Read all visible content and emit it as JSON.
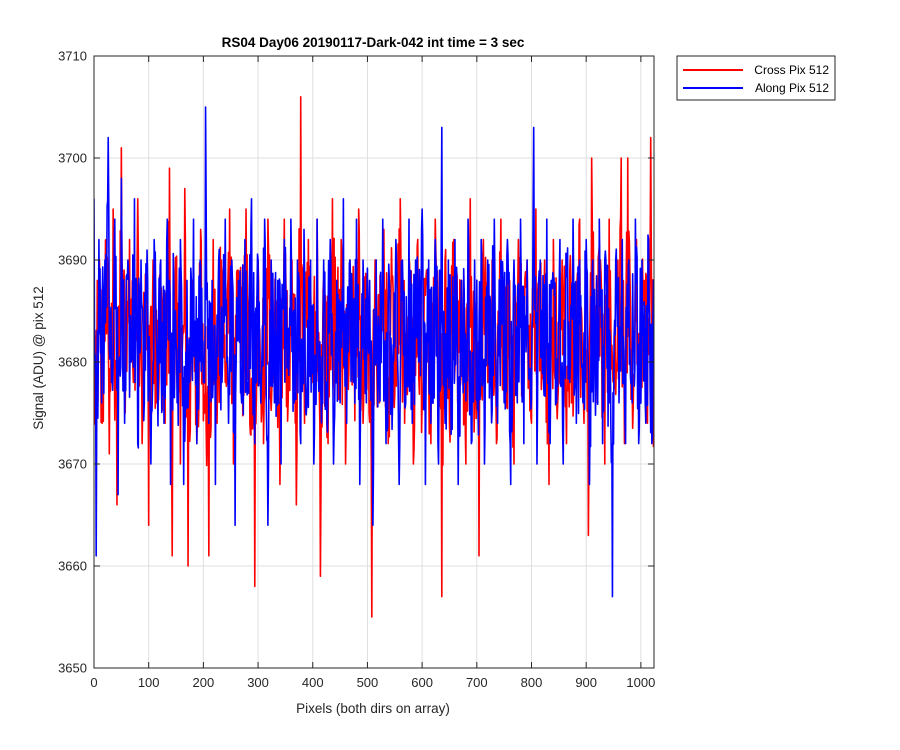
{
  "chart_data": {
    "type": "line",
    "title": "RS04 Day06 20190117-Dark-042 int time = 3 sec",
    "xlabel": "Pixels (both dirs on array)",
    "ylabel": "Signal (ADU) @ pix 512",
    "xlim": [
      0,
      1024
    ],
    "ylim": [
      3650,
      3710
    ],
    "xticks": [
      0,
      100,
      200,
      300,
      400,
      500,
      600,
      700,
      800,
      900,
      1000
    ],
    "yticks": [
      3650,
      3660,
      3670,
      3680,
      3690,
      3700,
      3710
    ],
    "grid": true,
    "legend_position": "outside top-right",
    "noise_model": {
      "description": "1024 samples per series; interior values estimated by linear interpolation between the listed anchor points",
      "n_points": 1024
    },
    "series": [
      {
        "name": "Cross Pix 512",
        "color": "#ff0000",
        "anchors": [
          [
            0,
            3683
          ],
          [
            5,
            3678
          ],
          [
            10,
            3690
          ],
          [
            15,
            3674
          ],
          [
            22,
            3692
          ],
          [
            28,
            3671
          ],
          [
            35,
            3695
          ],
          [
            42,
            3666
          ],
          [
            50,
            3701
          ],
          [
            57,
            3675
          ],
          [
            65,
            3692
          ],
          [
            72,
            3678
          ],
          [
            80,
            3696
          ],
          [
            88,
            3672
          ],
          [
            95,
            3688
          ],
          [
            100,
            3664
          ],
          [
            108,
            3690
          ],
          [
            115,
            3676
          ],
          [
            122,
            3686
          ],
          [
            130,
            3674
          ],
          [
            138,
            3699
          ],
          [
            143,
            3661
          ],
          [
            150,
            3690
          ],
          [
            158,
            3670
          ],
          [
            166,
            3697
          ],
          [
            172,
            3660
          ],
          [
            180,
            3688
          ],
          [
            188,
            3672
          ],
          [
            195,
            3693
          ],
          [
            203,
            3676
          ],
          [
            210,
            3661
          ],
          [
            218,
            3692
          ],
          [
            225,
            3674
          ],
          [
            233,
            3690
          ],
          [
            240,
            3678
          ],
          [
            248,
            3695
          ],
          [
            255,
            3670
          ],
          [
            262,
            3689
          ],
          [
            270,
            3680
          ],
          [
            278,
            3695
          ],
          [
            285,
            3674
          ],
          [
            294,
            3658
          ],
          [
            300,
            3690
          ],
          [
            310,
            3672
          ],
          [
            318,
            3694
          ],
          [
            325,
            3677
          ],
          [
            333,
            3686
          ],
          [
            340,
            3668
          ],
          [
            348,
            3694
          ],
          [
            355,
            3676
          ],
          [
            362,
            3690
          ],
          [
            370,
            3666
          ],
          [
            378,
            3706
          ],
          [
            385,
            3674
          ],
          [
            392,
            3692
          ],
          [
            400,
            3678
          ],
          [
            408,
            3694
          ],
          [
            414,
            3659
          ],
          [
            420,
            3688
          ],
          [
            428,
            3672
          ],
          [
            436,
            3696
          ],
          [
            444,
            3678
          ],
          [
            452,
            3692
          ],
          [
            460,
            3670
          ],
          [
            468,
            3690
          ],
          [
            476,
            3680
          ],
          [
            484,
            3695
          ],
          [
            492,
            3674
          ],
          [
            500,
            3688
          ],
          [
            508,
            3655
          ],
          [
            515,
            3690
          ],
          [
            522,
            3676
          ],
          [
            530,
            3693
          ],
          [
            538,
            3672
          ],
          [
            545,
            3688
          ],
          [
            552,
            3678
          ],
          [
            560,
            3696
          ],
          [
            568,
            3674
          ],
          [
            576,
            3690
          ],
          [
            584,
            3670
          ],
          [
            592,
            3692
          ],
          [
            600,
            3676
          ],
          [
            608,
            3689
          ],
          [
            616,
            3672
          ],
          [
            624,
            3694
          ],
          [
            630,
            3678
          ],
          [
            636,
            3657
          ],
          [
            642,
            3690
          ],
          [
            650,
            3674
          ],
          [
            658,
            3692
          ],
          [
            665,
            3676
          ],
          [
            672,
            3688
          ],
          [
            680,
            3670
          ],
          [
            688,
            3696
          ],
          [
            696,
            3676
          ],
          [
            704,
            3661
          ],
          [
            712,
            3692
          ],
          [
            720,
            3678
          ],
          [
            728,
            3690
          ],
          [
            736,
            3672
          ],
          [
            744,
            3694
          ],
          [
            752,
            3676
          ],
          [
            760,
            3688
          ],
          [
            768,
            3670
          ],
          [
            776,
            3692
          ],
          [
            784,
            3678
          ],
          [
            792,
            3690
          ],
          [
            800,
            3674
          ],
          [
            808,
            3695
          ],
          [
            816,
            3680
          ],
          [
            824,
            3690
          ],
          [
            832,
            3668
          ],
          [
            840,
            3692
          ],
          [
            848,
            3676
          ],
          [
            856,
            3690
          ],
          [
            864,
            3672
          ],
          [
            872,
            3688
          ],
          [
            880,
            3678
          ],
          [
            888,
            3694
          ],
          [
            896,
            3674
          ],
          [
            904,
            3663
          ],
          [
            910,
            3700
          ],
          [
            918,
            3676
          ],
          [
            926,
            3690
          ],
          [
            934,
            3670
          ],
          [
            942,
            3694
          ],
          [
            950,
            3678
          ],
          [
            958,
            3690
          ],
          [
            964,
            3700
          ],
          [
            970,
            3672
          ],
          [
            976,
            3700
          ],
          [
            984,
            3678
          ],
          [
            992,
            3692
          ],
          [
            998,
            3676
          ],
          [
            1006,
            3688
          ],
          [
            1012,
            3674
          ],
          [
            1018,
            3702
          ],
          [
            1024,
            3668
          ]
        ]
      },
      {
        "name": "Along Pix 512",
        "color": "#0000ff",
        "anchors": [
          [
            0,
            3696
          ],
          [
            4,
            3661
          ],
          [
            9,
            3692
          ],
          [
            14,
            3676
          ],
          [
            20,
            3690
          ],
          [
            26,
            3702
          ],
          [
            32,
            3678
          ],
          [
            38,
            3694
          ],
          [
            44,
            3667
          ],
          [
            50,
            3698
          ],
          [
            56,
            3674
          ],
          [
            62,
            3690
          ],
          [
            68,
            3680
          ],
          [
            74,
            3696
          ],
          [
            80,
            3672
          ],
          [
            86,
            3690
          ],
          [
            92,
            3676
          ],
          [
            98,
            3688
          ],
          [
            104,
            3670
          ],
          [
            110,
            3692
          ],
          [
            116,
            3678
          ],
          [
            122,
            3690
          ],
          [
            128,
            3674
          ],
          [
            134,
            3694
          ],
          [
            140,
            3668
          ],
          [
            146,
            3688
          ],
          [
            152,
            3676
          ],
          [
            158,
            3692
          ],
          [
            164,
            3668
          ],
          [
            170,
            3688
          ],
          [
            176,
            3680
          ],
          [
            182,
            3694
          ],
          [
            188,
            3672
          ],
          [
            194,
            3690
          ],
          [
            200,
            3678
          ],
          [
            204,
            3705
          ],
          [
            210,
            3674
          ],
          [
            216,
            3688
          ],
          [
            222,
            3668
          ],
          [
            228,
            3690
          ],
          [
            234,
            3678
          ],
          [
            240,
            3694
          ],
          [
            246,
            3674
          ],
          [
            252,
            3690
          ],
          [
            258,
            3664
          ],
          [
            264,
            3688
          ],
          [
            270,
            3676
          ],
          [
            276,
            3692
          ],
          [
            282,
            3678
          ],
          [
            288,
            3696
          ],
          [
            294,
            3672
          ],
          [
            300,
            3690
          ],
          [
            306,
            3678
          ],
          [
            312,
            3694
          ],
          [
            318,
            3664
          ],
          [
            324,
            3690
          ],
          [
            330,
            3676
          ],
          [
            336,
            3688
          ],
          [
            342,
            3670
          ],
          [
            348,
            3692
          ],
          [
            354,
            3680
          ],
          [
            360,
            3694
          ],
          [
            366,
            3676
          ],
          [
            372,
            3690
          ],
          [
            378,
            3672
          ],
          [
            384,
            3693
          ],
          [
            390,
            3678
          ],
          [
            396,
            3690
          ],
          [
            402,
            3670
          ],
          [
            408,
            3694
          ],
          [
            414,
            3678
          ],
          [
            420,
            3690
          ],
          [
            426,
            3674
          ],
          [
            432,
            3692
          ],
          [
            438,
            3670
          ],
          [
            444,
            3688
          ],
          [
            450,
            3676
          ],
          [
            456,
            3696
          ],
          [
            462,
            3674
          ],
          [
            468,
            3690
          ],
          [
            474,
            3678
          ],
          [
            480,
            3694
          ],
          [
            486,
            3668
          ],
          [
            492,
            3690
          ],
          [
            498,
            3676
          ],
          [
            504,
            3688
          ],
          [
            510,
            3664
          ],
          [
            516,
            3690
          ],
          [
            522,
            3678
          ],
          [
            528,
            3694
          ],
          [
            534,
            3672
          ],
          [
            540,
            3688
          ],
          [
            546,
            3676
          ],
          [
            552,
            3692
          ],
          [
            558,
            3668
          ],
          [
            564,
            3690
          ],
          [
            570,
            3676
          ],
          [
            576,
            3694
          ],
          [
            582,
            3674
          ],
          [
            588,
            3690
          ],
          [
            594,
            3680
          ],
          [
            600,
            3695
          ],
          [
            606,
            3668
          ],
          [
            612,
            3690
          ],
          [
            618,
            3676
          ],
          [
            624,
            3692
          ],
          [
            630,
            3670
          ],
          [
            636,
            3703
          ],
          [
            642,
            3674
          ],
          [
            648,
            3690
          ],
          [
            654,
            3676
          ],
          [
            660,
            3692
          ],
          [
            666,
            3668
          ],
          [
            672,
            3688
          ],
          [
            678,
            3678
          ],
          [
            684,
            3694
          ],
          [
            690,
            3672
          ],
          [
            696,
            3690
          ],
          [
            702,
            3676
          ],
          [
            708,
            3692
          ],
          [
            714,
            3670
          ],
          [
            720,
            3690
          ],
          [
            726,
            3678
          ],
          [
            732,
            3694
          ],
          [
            738,
            3674
          ],
          [
            744,
            3690
          ],
          [
            750,
            3676
          ],
          [
            756,
            3692
          ],
          [
            762,
            3668
          ],
          [
            768,
            3690
          ],
          [
            774,
            3676
          ],
          [
            780,
            3694
          ],
          [
            786,
            3672
          ],
          [
            792,
            3690
          ],
          [
            798,
            3678
          ],
          [
            804,
            3703
          ],
          [
            810,
            3670
          ],
          [
            816,
            3690
          ],
          [
            822,
            3678
          ],
          [
            828,
            3694
          ],
          [
            834,
            3672
          ],
          [
            840,
            3688
          ],
          [
            846,
            3676
          ],
          [
            852,
            3692
          ],
          [
            858,
            3670
          ],
          [
            864,
            3690
          ],
          [
            870,
            3678
          ],
          [
            876,
            3694
          ],
          [
            882,
            3674
          ],
          [
            888,
            3690
          ],
          [
            894,
            3676
          ],
          [
            900,
            3692
          ],
          [
            906,
            3668
          ],
          [
            912,
            3690
          ],
          [
            918,
            3678
          ],
          [
            924,
            3694
          ],
          [
            930,
            3672
          ],
          [
            936,
            3690
          ],
          [
            942,
            3676
          ],
          [
            948,
            3657
          ],
          [
            954,
            3690
          ],
          [
            960,
            3676
          ],
          [
            966,
            3692
          ],
          [
            972,
            3672
          ],
          [
            978,
            3690
          ],
          [
            984,
            3676
          ],
          [
            990,
            3694
          ],
          [
            996,
            3672
          ],
          [
            1002,
            3690
          ],
          [
            1008,
            3676
          ],
          [
            1014,
            3692
          ],
          [
            1020,
            3672
          ],
          [
            1024,
            3694
          ]
        ]
      }
    ]
  }
}
